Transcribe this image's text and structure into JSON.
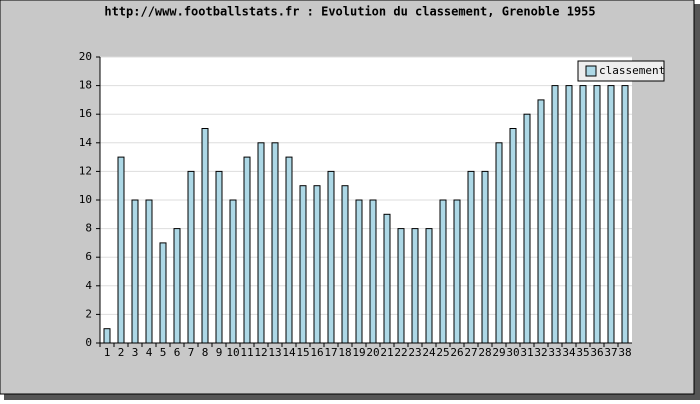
{
  "chart_data": {
    "type": "bar",
    "title": "http://www.footballstats.fr : Evolution du classement, Grenoble 1955",
    "categories": [
      "1",
      "2",
      "3",
      "4",
      "5",
      "6",
      "7",
      "8",
      "9",
      "10",
      "11",
      "12",
      "13",
      "14",
      "15",
      "16",
      "17",
      "18",
      "19",
      "20",
      "21",
      "22",
      "23",
      "24",
      "25",
      "26",
      "27",
      "28",
      "29",
      "30",
      "31",
      "32",
      "33",
      "34",
      "35",
      "36",
      "37",
      "38"
    ],
    "series": [
      {
        "name": "classement",
        "color": "#add8e6",
        "values": [
          1,
          13,
          10,
          10,
          7,
          8,
          12,
          15,
          12,
          10,
          13,
          14,
          14,
          13,
          11,
          11,
          12,
          11,
          10,
          10,
          9,
          8,
          8,
          8,
          10,
          10,
          12,
          12,
          14,
          15,
          16,
          17,
          18,
          18,
          18,
          18,
          18,
          18
        ]
      }
    ],
    "ylim": [
      0,
      20
    ],
    "yticks": [
      0,
      2,
      4,
      6,
      8,
      10,
      12,
      14,
      16,
      18,
      20
    ],
    "grid": true,
    "legend": "top-right"
  }
}
